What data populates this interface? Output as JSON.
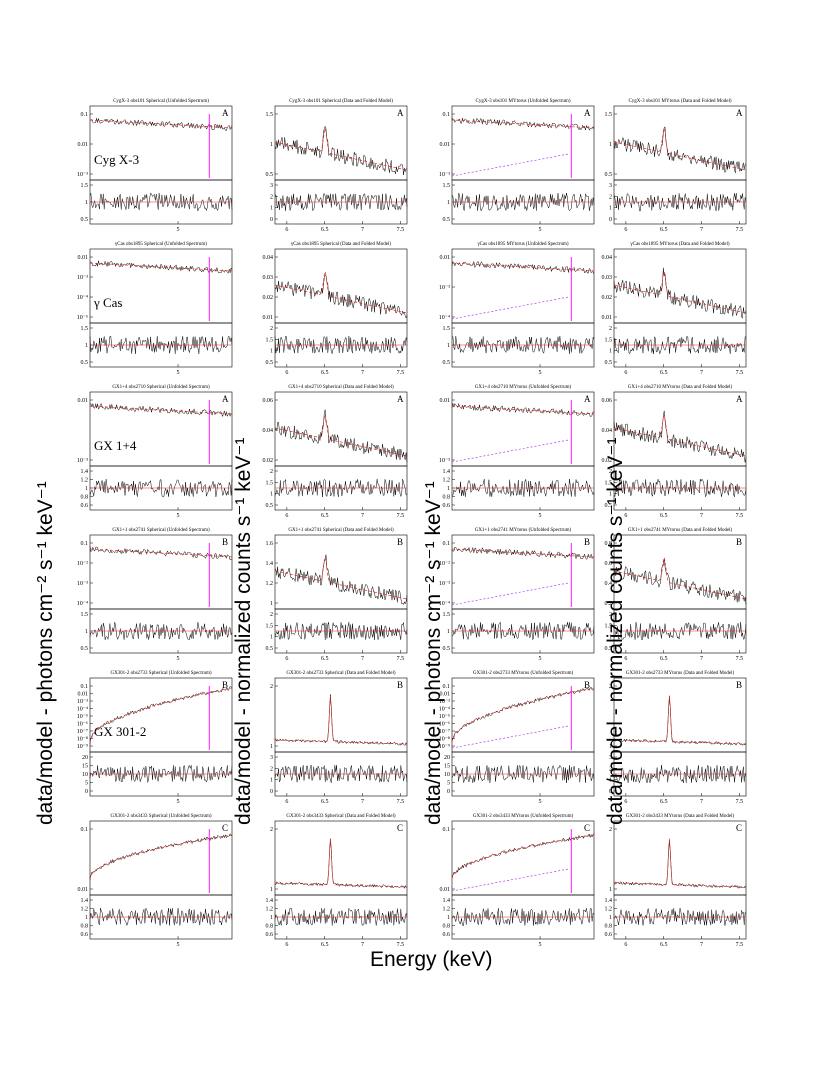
{
  "colors": {
    "data": "#000000",
    "model": "#e8231a",
    "component": "#a020f0",
    "line": "#ff00ff",
    "continuum": "#1f3bd6"
  },
  "axis_labels": {
    "ylabel_left": "data/model - photons cm⁻² s⁻¹ keV⁻¹",
    "ylabel_mid": "data/model - normalized counts s⁻¹ keV⁻¹",
    "ylabel_right_mid": "data/model - photons cm⁻² s⁻¹ keV⁻¹",
    "ylabel_right": "data/model - normalized counts s⁻¹ keV⁻¹",
    "xlabel": "Energy (keV)"
  },
  "chart_data": [
    {
      "type": "line",
      "row": 0,
      "col": 0,
      "kind": "unfolded",
      "title": "CygX-3 obs101 Spherical (Unfolded Spectrum)",
      "source_label": "Cyg X-3",
      "letter": "A",
      "top_ticks": [
        "0.1",
        "0.01",
        "10⁻³"
      ],
      "bottom_ticks": [
        "1.5",
        "1",
        "0.5"
      ],
      "x_ticks": [
        "5"
      ],
      "seed": 11
    },
    {
      "type": "line",
      "row": 0,
      "col": 1,
      "kind": "folded",
      "title": "CygX-3 obs101 Spherical (Data and Folded Model)",
      "letter": "A",
      "top_ticks": [
        "1.5",
        "1",
        "0.5"
      ],
      "bottom_ticks": [
        "3",
        "2",
        "1",
        "0"
      ],
      "x_ticks": [
        "6",
        "6.5",
        "7",
        "7.5"
      ],
      "seed": 12
    },
    {
      "type": "line",
      "row": 0,
      "col": 2,
      "kind": "unfolded",
      "title": "CygX-3 obs101 MYtorus (Unfolded Spectrum)",
      "letter": "A",
      "top_ticks": [
        "0.1",
        "0.01",
        "10⁻³"
      ],
      "bottom_ticks": [
        "1.5",
        "1",
        "0.5"
      ],
      "x_ticks": [
        "5"
      ],
      "seed": 13
    },
    {
      "type": "line",
      "row": 0,
      "col": 3,
      "kind": "folded",
      "title": "CygX-3 obs101 MYtorus (Data and Folded Model)",
      "letter": "A",
      "top_ticks": [
        "1.5",
        "1",
        "0.5"
      ],
      "bottom_ticks": [
        "3",
        "2",
        "1",
        "0"
      ],
      "x_ticks": [
        "6",
        "6.5",
        "7",
        "7.5"
      ],
      "seed": 14
    },
    {
      "type": "line",
      "row": 1,
      "col": 0,
      "kind": "unfolded",
      "title": "γCas obs1895 Spherical (Unfolded Spectrum)",
      "source_label": "γ Cas",
      "letter": "",
      "top_ticks": [
        "0.01",
        "10⁻³",
        "10⁻⁴",
        "10⁻⁵"
      ],
      "bottom_ticks": [
        "1.5",
        "1",
        "0.5"
      ],
      "x_ticks": [
        "5"
      ],
      "seed": 21
    },
    {
      "type": "line",
      "row": 1,
      "col": 1,
      "kind": "folded",
      "title": "γCas obs1895 Spherical (Data and Folded Model)",
      "letter": "",
      "top_ticks": [
        "0.04",
        "0.03",
        "0.02",
        "0.01"
      ],
      "bottom_ticks": [
        "2",
        "1.5",
        "1",
        "0.5"
      ],
      "x_ticks": [
        "6",
        "6.5",
        "7",
        "7.5"
      ],
      "seed": 22
    },
    {
      "type": "line",
      "row": 1,
      "col": 2,
      "kind": "unfolded",
      "title": "γCas obs1895 MYtorus (Unfolded Spectrum)",
      "letter": "",
      "top_ticks": [
        "0.01",
        "10⁻³",
        "10⁻⁴"
      ],
      "bottom_ticks": [
        "1.5",
        "1",
        "0.5"
      ],
      "x_ticks": [
        "5"
      ],
      "seed": 23
    },
    {
      "type": "line",
      "row": 1,
      "col": 3,
      "kind": "folded",
      "title": "γCas obs1895 MYtorus (Data and Folded Model)",
      "letter": "",
      "top_ticks": [
        "0.04",
        "0.03",
        "0.02",
        "0.01"
      ],
      "bottom_ticks": [
        "2",
        "1.5",
        "1",
        "0.5"
      ],
      "x_ticks": [
        "6",
        "6.5",
        "7",
        "7.5"
      ],
      "seed": 24
    },
    {
      "type": "line",
      "row": 2,
      "col": 0,
      "kind": "unfolded",
      "title": "GX1+4 obs2710 Spherical (Unfolded Spectrum)",
      "source_label": "GX 1+4",
      "letter": "A",
      "top_ticks": [
        "0.01",
        "10⁻³"
      ],
      "bottom_ticks": [
        "1.4",
        "1.2",
        "1",
        "0.8",
        "0.6"
      ],
      "x_ticks": [
        "5"
      ],
      "seed": 31
    },
    {
      "type": "line",
      "row": 2,
      "col": 1,
      "kind": "folded",
      "title": "GX1+4 obs2710 Spherical (Data and Folded Model)",
      "letter": "A",
      "top_ticks": [
        "0.06",
        "0.04",
        "0.02"
      ],
      "bottom_ticks": [
        "2",
        "1.5",
        "1",
        "0.5"
      ],
      "x_ticks": [
        "6",
        "6.5",
        "7",
        "7.5"
      ],
      "seed": 32
    },
    {
      "type": "line",
      "row": 2,
      "col": 2,
      "kind": "unfolded",
      "title": "GX1+4 obs2710 MYtorus (Unfolded Spectrum)",
      "letter": "A",
      "top_ticks": [
        "0.01",
        "10⁻³"
      ],
      "bottom_ticks": [
        "1.4",
        "1.2",
        "1",
        "0.8",
        "0.6"
      ],
      "x_ticks": [
        "5"
      ],
      "seed": 33
    },
    {
      "type": "line",
      "row": 2,
      "col": 3,
      "kind": "folded",
      "title": "GX1+4 obs2710 MYtorus (Data and Folded Model)",
      "letter": "A",
      "top_ticks": [
        "0.06",
        "0.04",
        "0.02"
      ],
      "bottom_ticks": [
        "2",
        "1.5",
        "1",
        "0.5"
      ],
      "x_ticks": [
        "6",
        "6.5",
        "7",
        "7.5"
      ],
      "seed": 34
    },
    {
      "type": "line",
      "row": 3,
      "col": 0,
      "kind": "unfolded",
      "title": "GX1+1 obs2741 Spherical (Unfolded Spectrum)",
      "letter": "B",
      "top_ticks": [
        "0.1",
        "10⁻²",
        "10⁻³",
        "10⁻⁴"
      ],
      "bottom_ticks": [
        "1.5",
        "1",
        "0.5"
      ],
      "x_ticks": [
        "5"
      ],
      "seed": 41
    },
    {
      "type": "line",
      "row": 3,
      "col": 1,
      "kind": "folded",
      "title": "GX1+1 obs2741 Spherical (Data and Folded Model)",
      "letter": "B",
      "top_ticks": [
        "1.6",
        "1.4",
        "1.2",
        "1"
      ],
      "bottom_ticks": [
        "2",
        "1.5",
        "1",
        "0.5"
      ],
      "x_ticks": [
        "6",
        "6.5",
        "7",
        "7.5"
      ],
      "seed": 42
    },
    {
      "type": "line",
      "row": 3,
      "col": 2,
      "kind": "unfolded",
      "title": "GX1+1 obs2741 MYtorus (Unfolded Spectrum)",
      "letter": "B",
      "top_ticks": [
        "0.1",
        "10⁻²",
        "10⁻³",
        "10⁻⁴"
      ],
      "bottom_ticks": [
        "1.5",
        "1",
        "0.5"
      ],
      "x_ticks": [
        "5"
      ],
      "seed": 43
    },
    {
      "type": "line",
      "row": 3,
      "col": 3,
      "kind": "folded",
      "title": "GX1+1 obs2741 MYtorus (Data and Folded Model)",
      "letter": "B",
      "top_ticks": [
        "0.8",
        "0.6",
        "0.4",
        "0.2"
      ],
      "bottom_ticks": [
        "2",
        "1.5",
        "1",
        "0.5"
      ],
      "x_ticks": [
        "6",
        "6.5",
        "7",
        "7.5"
      ],
      "seed": 44
    },
    {
      "type": "line",
      "row": 4,
      "col": 0,
      "kind": "unfolded_rise",
      "title": "GX301-2 obs2733 Spherical (Unfolded Spectrum)",
      "source_label": "GX 301-2",
      "letter": "B",
      "top_ticks": [
        "0.1",
        "0.01",
        "10⁻³",
        "10⁻⁴",
        "10⁻⁵",
        "10⁻⁶",
        "10⁻⁷",
        "10⁻⁸",
        "10⁻⁹"
      ],
      "bottom_ticks": [
        "20",
        "15",
        "10",
        "5",
        "0"
      ],
      "x_ticks": [
        "5"
      ],
      "seed": 51
    },
    {
      "type": "line",
      "row": 4,
      "col": 1,
      "kind": "folded_narrow",
      "title": "GX301-2 obs2733 Spherical (Data and Folded Model)",
      "letter": "B",
      "top_ticks": [
        "2",
        "1"
      ],
      "bottom_ticks": [
        "3",
        "2",
        "1",
        "0"
      ],
      "x_ticks": [
        "6",
        "6.5",
        "7",
        "7.5"
      ],
      "seed": 52
    },
    {
      "type": "line",
      "row": 4,
      "col": 2,
      "kind": "unfolded_rise",
      "title": "GX301-2 obs2733 MYtorus (Unfolded Spectrum)",
      "letter": "B",
      "top_ticks": [
        "0.1",
        "0.01",
        "10⁻³",
        "10⁻⁴",
        "10⁻⁵",
        "10⁻⁶",
        "10⁻⁷",
        "10⁻⁸",
        "10⁻⁹"
      ],
      "bottom_ticks": [
        "20",
        "15",
        "10",
        "5",
        "0"
      ],
      "x_ticks": [
        "5"
      ],
      "seed": 53
    },
    {
      "type": "line",
      "row": 4,
      "col": 3,
      "kind": "folded_narrow",
      "title": "GX301-2 obs2733 MYtorus (Data and Folded Model)",
      "letter": "B",
      "top_ticks": [
        "2",
        "1"
      ],
      "bottom_ticks": [
        "3",
        "2",
        "1",
        "0"
      ],
      "x_ticks": [
        "6",
        "6.5",
        "7",
        "7.5"
      ],
      "seed": 54
    },
    {
      "type": "line",
      "row": 5,
      "col": 0,
      "kind": "unfolded_rise2",
      "title": "GX301-2 obs3433 Spherical (Unfolded Spectrum)",
      "letter": "C",
      "top_ticks": [
        "0.1",
        "0.01"
      ],
      "bottom_ticks": [
        "1.4",
        "1.2",
        "1",
        "0.8",
        "0.6"
      ],
      "x_ticks": [
        "5"
      ],
      "seed": 61
    },
    {
      "type": "line",
      "row": 5,
      "col": 1,
      "kind": "folded_narrow",
      "title": "GX301-2 obs3433 Spherical (Data and Folded Model)",
      "letter": "C",
      "top_ticks": [
        "2",
        "1"
      ],
      "bottom_ticks": [
        "1.4",
        "1.2",
        "1",
        "0.8",
        "0.6"
      ],
      "x_ticks": [
        "6",
        "6.5",
        "7",
        "7.5"
      ],
      "seed": 62
    },
    {
      "type": "line",
      "row": 5,
      "col": 2,
      "kind": "unfolded_rise2",
      "title": "GX301-2 obs3433 MYtorus (Unfolded Spectrum)",
      "letter": "C",
      "top_ticks": [
        "0.1",
        "0.01"
      ],
      "bottom_ticks": [
        "1.4",
        "1.2",
        "1",
        "0.8",
        "0.6"
      ],
      "x_ticks": [
        "5"
      ],
      "seed": 63
    },
    {
      "type": "line",
      "row": 5,
      "col": 3,
      "kind": "folded_narrow",
      "title": "GX301-2 obs3433 MYtorus (Data and Folded Model)",
      "letter": "C",
      "top_ticks": [
        "2",
        "1"
      ],
      "bottom_ticks": [
        "1.4",
        "1.2",
        "1",
        "0.8",
        "0.6"
      ],
      "x_ticks": [
        "6",
        "6.5",
        "7",
        "7.5"
      ],
      "seed": 64
    }
  ]
}
